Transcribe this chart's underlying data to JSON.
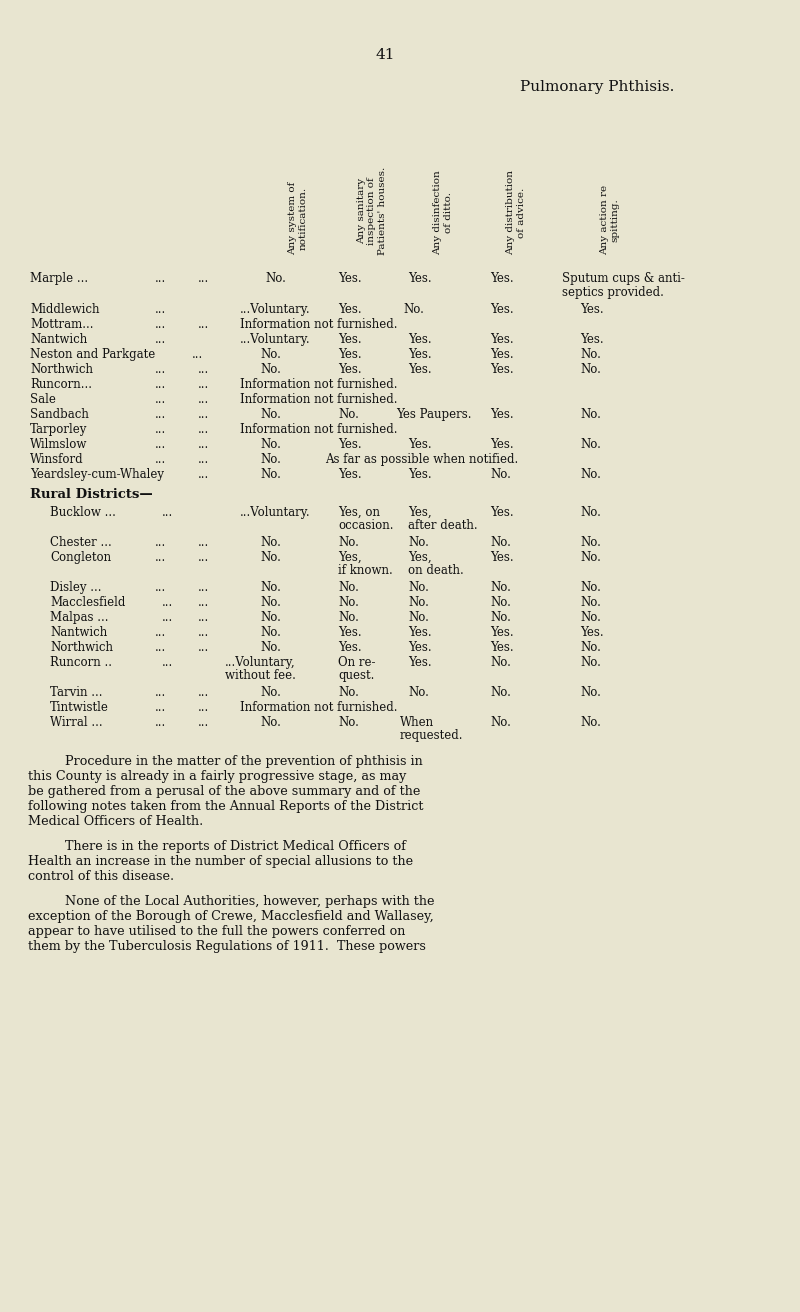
{
  "bg_color": "#e8e5d0",
  "page_number": "41",
  "title_line1": "Pulmonary Phthisis.",
  "col_headers": [
    "Any system of\nnotification.",
    "Any sanitary\ninspection of\nPatients' houses.",
    "Any disinfection\nof ditto.",
    "Any distribution\nof advice.",
    "Any action re\nspitting."
  ],
  "paragraph1_lines": [
    "Procedure in the matter of the prevention of phthisis in",
    "this County is already in a fairly progressive stage, as may",
    "be gathered from a perusal of the above summary and of the",
    "following notes taken from the Annual Reports of the District",
    "Medical Officers of Health."
  ],
  "paragraph2_lines": [
    "There is in the reports of District Medical Officers of",
    "Health an increase in the number of special allusions to the",
    "control of this disease."
  ],
  "paragraph3_lines": [
    "None of the Local Authorities, however, perhaps with the",
    "exception of the Borough of Crewe, Macclesfield and Wallasey,",
    "appear to have utilised to the full the powers conferred on",
    "them by the Tuberculosis Regulations of 1911.  These powers"
  ]
}
